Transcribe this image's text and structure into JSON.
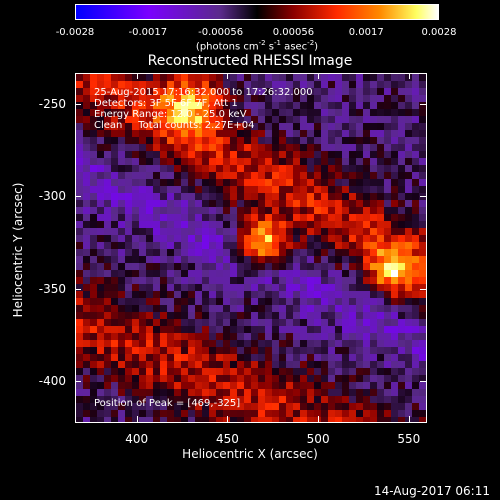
{
  "colorbar": {
    "ticks": [
      "-0.0028",
      "-0.0017",
      "-0.00056",
      "0.00056",
      "0.0017",
      "0.0028"
    ],
    "unit_main": "(photons cm",
    "unit_exp1": "-2",
    "unit_s": " s",
    "unit_exp2": "-1",
    "unit_asec": " asec",
    "unit_exp3": "-2",
    "unit_close": ")"
  },
  "chart_data": {
    "type": "heatmap",
    "title": "Reconstructed RHESSI Image",
    "xlabel": "Heliocentric X (arcsec)",
    "ylabel": "Heliocentric Y (arcsec)",
    "xlim": [
      366,
      560
    ],
    "ylim": [
      -423,
      -233
    ],
    "xticks": [
      400,
      450,
      500,
      550
    ],
    "yticks": [
      -250,
      -300,
      -350,
      -400
    ],
    "zlim": [
      -0.0028,
      0.0028
    ],
    "peak": [
      469,
      -325
    ],
    "sources": [
      {
        "x": 469,
        "y": -325,
        "sigma": 9,
        "amp": 0.0028
      },
      {
        "x": 540,
        "y": -340,
        "sigma": 9,
        "amp": 0.002
      },
      {
        "x": 430,
        "y": -248,
        "sigma": 12,
        "amp": 0.002
      }
    ],
    "annotations": [
      "25-Aug-2015 17:16:32.000 to 17:26:32.000",
      "Detectors: 3F 5F 6F 7F, Att 1",
      "Energy Range: 12.0 - 25.0 keV",
      "Clean     Total counts: 2.27E+04"
    ],
    "peak_label": "Position of Peak = [469,-325]"
  },
  "footer": {
    "timestamp": "14-Aug-2017 06:11"
  }
}
